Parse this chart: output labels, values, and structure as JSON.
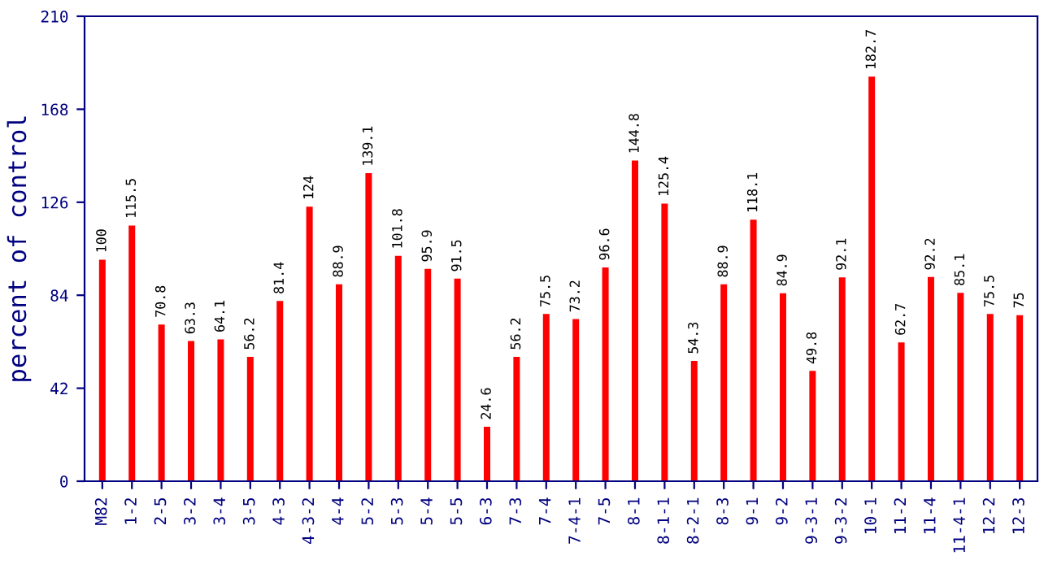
{
  "chart_data": {
    "type": "bar",
    "ylabel": "percent of control",
    "categories": [
      "M82",
      "1-2",
      "2-5",
      "3-2",
      "3-4",
      "3-5",
      "4-3",
      "4-3-2",
      "4-4",
      "5-2",
      "5-3",
      "5-4",
      "5-5",
      "6-3",
      "7-3",
      "7-4",
      "7-4-1",
      "7-5",
      "8-1",
      "8-1-1",
      "8-2-1",
      "8-3",
      "9-1",
      "9-2",
      "9-3-1",
      "9-3-2",
      "10-1",
      "11-2",
      "11-4",
      "11-4-1",
      "12-2",
      "12-3"
    ],
    "values": [
      100,
      115.5,
      70.8,
      63.3,
      64.1,
      56.2,
      81.4,
      124,
      88.9,
      139.1,
      101.8,
      95.9,
      91.5,
      24.6,
      56.2,
      75.5,
      73.2,
      96.6,
      144.8,
      125.4,
      54.3,
      88.9,
      118.1,
      84.9,
      49.8,
      92.1,
      182.7,
      62.7,
      92.2,
      85.1,
      75.5,
      75
    ],
    "color": "#ff0000",
    "ylim": [
      0,
      210
    ],
    "yticks": [
      0,
      42,
      84,
      126,
      168,
      210
    ],
    "data_labels": true,
    "grid": false,
    "legend": false
  }
}
